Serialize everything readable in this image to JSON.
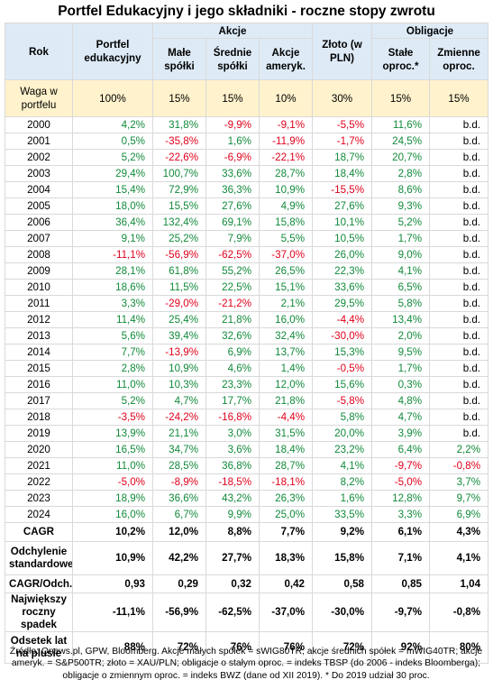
{
  "title": "Portfel Edukacyjny i jego składniki - roczne stopy zwrotu",
  "headers": {
    "rok": "Rok",
    "portfel": "Portfel edukacyjny",
    "akcje_group": "Akcje",
    "obligacje_group": "Obligacje",
    "male": "Małe spółki",
    "srednie": "Średnie spółki",
    "ameryk": "Akcje ameryk.",
    "zloto": "Złoto (w PLN)",
    "stale": "Stałe oproc.*",
    "zmienne": "Zmienne oproc."
  },
  "weights": {
    "label": "Waga w portfelu",
    "values": [
      "100%",
      "15%",
      "15%",
      "10%",
      "30%",
      "15%",
      "15%"
    ]
  },
  "rows": [
    {
      "year": "2000",
      "v": [
        "4,2%",
        "31,8%",
        "-9,9%",
        "-9,1%",
        "-5,5%",
        "11,6%",
        "b.d."
      ]
    },
    {
      "year": "2001",
      "v": [
        "0,5%",
        "-35,8%",
        "1,6%",
        "-11,9%",
        "-1,7%",
        "24,5%",
        "b.d."
      ]
    },
    {
      "year": "2002",
      "v": [
        "5,2%",
        "-22,6%",
        "-6,9%",
        "-22,1%",
        "18,7%",
        "20,7%",
        "b.d."
      ]
    },
    {
      "year": "2003",
      "v": [
        "29,4%",
        "100,7%",
        "33,6%",
        "28,7%",
        "18,4%",
        "2,8%",
        "b.d."
      ]
    },
    {
      "year": "2004",
      "v": [
        "15,4%",
        "72,9%",
        "36,3%",
        "10,9%",
        "-15,5%",
        "8,6%",
        "b.d."
      ]
    },
    {
      "year": "2005",
      "v": [
        "18,0%",
        "15,5%",
        "27,6%",
        "4,9%",
        "27,6%",
        "9,3%",
        "b.d."
      ]
    },
    {
      "year": "2006",
      "v": [
        "36,4%",
        "132,4%",
        "69,1%",
        "15,8%",
        "10,1%",
        "5,2%",
        "b.d."
      ]
    },
    {
      "year": "2007",
      "v": [
        "9,1%",
        "25,2%",
        "7,9%",
        "5,5%",
        "10,5%",
        "1,7%",
        "b.d."
      ]
    },
    {
      "year": "2008",
      "v": [
        "-11,1%",
        "-56,9%",
        "-62,5%",
        "-37,0%",
        "26,0%",
        "9,0%",
        "b.d."
      ]
    },
    {
      "year": "2009",
      "v": [
        "28,1%",
        "61,8%",
        "55,2%",
        "26,5%",
        "22,3%",
        "4,1%",
        "b.d."
      ]
    },
    {
      "year": "2010",
      "v": [
        "18,6%",
        "11,5%",
        "22,5%",
        "15,1%",
        "33,6%",
        "6,5%",
        "b.d."
      ]
    },
    {
      "year": "2011",
      "v": [
        "3,3%",
        "-29,0%",
        "-21,2%",
        "2,1%",
        "29,5%",
        "5,8%",
        "b.d."
      ]
    },
    {
      "year": "2012",
      "v": [
        "11,4%",
        "25,4%",
        "21,8%",
        "16,0%",
        "-4,4%",
        "13,4%",
        "b.d."
      ]
    },
    {
      "year": "2013",
      "v": [
        "5,6%",
        "39,4%",
        "32,6%",
        "32,4%",
        "-30,0%",
        "2,0%",
        "b.d."
      ]
    },
    {
      "year": "2014",
      "v": [
        "7,7%",
        "-13,9%",
        "6,9%",
        "13,7%",
        "15,3%",
        "9,5%",
        "b.d."
      ]
    },
    {
      "year": "2015",
      "v": [
        "2,8%",
        "10,9%",
        "4,6%",
        "1,4%",
        "-0,5%",
        "1,7%",
        "b.d."
      ]
    },
    {
      "year": "2016",
      "v": [
        "11,0%",
        "10,3%",
        "23,3%",
        "12,0%",
        "15,6%",
        "0,3%",
        "b.d."
      ]
    },
    {
      "year": "2017",
      "v": [
        "5,2%",
        "4,7%",
        "17,7%",
        "21,8%",
        "-5,8%",
        "4,8%",
        "b.d."
      ]
    },
    {
      "year": "2018",
      "v": [
        "-3,5%",
        "-24,2%",
        "-16,8%",
        "-4,4%",
        "5,8%",
        "4,7%",
        "b.d."
      ]
    },
    {
      "year": "2019",
      "v": [
        "13,9%",
        "21,1%",
        "3,0%",
        "31,5%",
        "20,0%",
        "3,9%",
        "b.d."
      ]
    },
    {
      "year": "2020",
      "v": [
        "16,5%",
        "34,7%",
        "3,6%",
        "18,4%",
        "23,2%",
        "6,4%",
        "2,2%"
      ]
    },
    {
      "year": "2021",
      "v": [
        "11,0%",
        "28,5%",
        "36,8%",
        "28,7%",
        "4,1%",
        "-9,7%",
        "-0,8%"
      ]
    },
    {
      "year": "2022",
      "v": [
        "-5,0%",
        "-8,9%",
        "-18,5%",
        "-18,1%",
        "8,2%",
        "-5,0%",
        "3,7%"
      ]
    },
    {
      "year": "2023",
      "v": [
        "18,9%",
        "36,6%",
        "43,2%",
        "26,3%",
        "1,6%",
        "12,8%",
        "9,7%"
      ]
    },
    {
      "year": "2024",
      "v": [
        "16,0%",
        "6,7%",
        "9,9%",
        "25,0%",
        "33,5%",
        "3,3%",
        "6,9%"
      ]
    }
  ],
  "stats": [
    {
      "label": "CAGR",
      "v": [
        "10,2%",
        "12,0%",
        "8,8%",
        "7,7%",
        "9,2%",
        "6,1%",
        "4,3%"
      ]
    },
    {
      "label": "Odchylenie standardowe",
      "v": [
        "10,9%",
        "42,2%",
        "27,7%",
        "18,3%",
        "15,8%",
        "7,1%",
        "4,1%"
      ]
    },
    {
      "label": "CAGR/Odch.",
      "v": [
        "0,93",
        "0,29",
        "0,32",
        "0,42",
        "0,58",
        "0,85",
        "1,04"
      ]
    },
    {
      "label": "Największy roczny spadek",
      "v": [
        "-11,1%",
        "-56,9%",
        "-62,5%",
        "-37,0%",
        "-30,0%",
        "-9,7%",
        "-0,8%"
      ]
    },
    {
      "label": "Odsetek lat na plusie",
      "v": [
        "88%",
        "72%",
        "76%",
        "76%",
        "72%",
        "92%",
        "80%"
      ]
    }
  ],
  "footnote": "Źródło: Qnews.pl, GPW, Bloomberg. Akcje małych spółek = sWIG80TR; akcje średnich spółek = mWIG40TR; akcje ameryk. = S&P500TR; złoto = XAU/PLN; obligacje o stałym oproc. = indeks TBSP (do 2006 - indeks Bloomberga); obligacje o zmiennym oproc. = indeks BWZ (dane od XII 2019). * Do 2019 udział 30 proc.",
  "colors": {
    "header_bg": "#deebf7",
    "weight_bg": "#fff2cc",
    "positive": "#118a3a",
    "negative": "#e0001b",
    "grid": "#d9d9d9"
  }
}
